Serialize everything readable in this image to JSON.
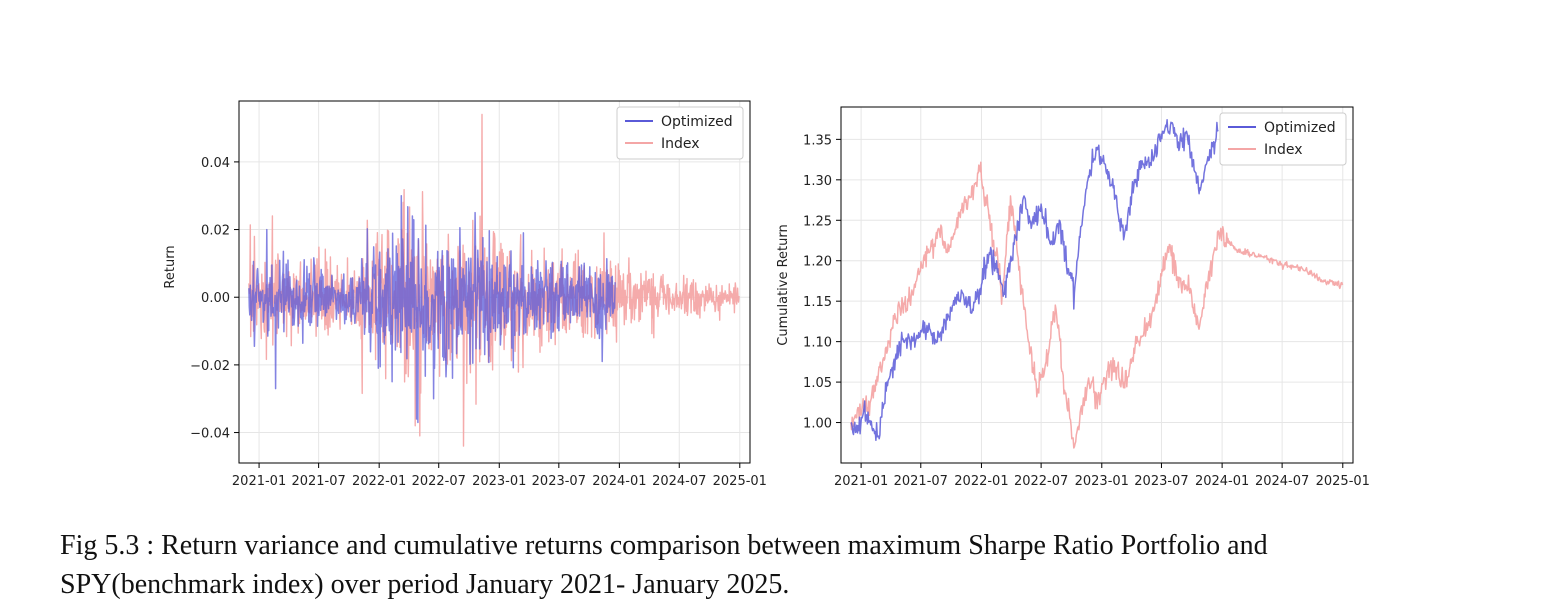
{
  "caption": {
    "line1": "Fig 5.3 : Return variance and cumulative returns comparison between maximum Sharpe Ratio Portfolio and",
    "line2": "SPY(benchmark index) over period January 2021- January 2025."
  },
  "colors": {
    "optimized": "#5a5ad8",
    "index": "#f4a6a6",
    "overlap": "#9b4fb0",
    "grid": "#e6e6e6",
    "axis": "#000000"
  },
  "chart_data": [
    {
      "type": "line",
      "title": "",
      "xlabel": "",
      "ylabel": "Return",
      "x_ticks": [
        "2021-01",
        "2021-07",
        "2022-01",
        "2022-07",
        "2023-01",
        "2023-07",
        "2024-01",
        "2024-07",
        "2025-01"
      ],
      "y_ticks": [
        "0.04",
        "0.02",
        "0.00",
        "−0.02",
        "−0.04"
      ],
      "ylim": [
        -0.049,
        0.058
      ],
      "xlim": [
        "2020-11-01",
        "2025-02-01"
      ],
      "grid": true,
      "legend": "top-right",
      "series": [
        {
          "name": "Optimized",
          "color": "#5a5ad8",
          "date_range": [
            "2020-12-01",
            "2023-12-20"
          ],
          "amplitude_profile": [
            {
              "date": "2020-12-01",
              "amp": 0.01
            },
            {
              "date": "2021-06-01",
              "amp": 0.01
            },
            {
              "date": "2021-09-01",
              "amp": 0.007
            },
            {
              "date": "2022-01-01",
              "amp": 0.018
            },
            {
              "date": "2022-06-01",
              "amp": 0.02
            },
            {
              "date": "2022-12-01",
              "amp": 0.014
            },
            {
              "date": "2023-06-01",
              "amp": 0.009
            },
            {
              "date": "2023-12-20",
              "amp": 0.011
            }
          ],
          "extremes": [
            {
              "date": "2021-02-20",
              "value": -0.027
            },
            {
              "date": "2021-01-25",
              "value": 0.02
            },
            {
              "date": "2022-03-10",
              "value": 0.03
            },
            {
              "date": "2022-04-25",
              "value": -0.036
            },
            {
              "date": "2022-06-15",
              "value": -0.03
            },
            {
              "date": "2022-10-20",
              "value": 0.025
            },
            {
              "date": "2023-03-15",
              "value": 0.019
            },
            {
              "date": "2023-11-10",
              "value": -0.019
            }
          ]
        },
        {
          "name": "Index",
          "color": "#f4a6a6",
          "date_range": [
            "2020-12-01",
            "2024-12-31"
          ],
          "amplitude_profile": [
            {
              "date": "2020-12-01",
              "amp": 0.012
            },
            {
              "date": "2021-06-01",
              "amp": 0.01
            },
            {
              "date": "2021-10-01",
              "amp": 0.01
            },
            {
              "date": "2022-03-01",
              "amp": 0.02
            },
            {
              "date": "2022-09-01",
              "amp": 0.022
            },
            {
              "date": "2023-03-01",
              "amp": 0.015
            },
            {
              "date": "2023-12-01",
              "amp": 0.011
            },
            {
              "date": "2024-05-01",
              "amp": 0.006
            },
            {
              "date": "2024-12-31",
              "amp": 0.004
            }
          ],
          "extremes": [
            {
              "date": "2022-11-10",
              "value": 0.054
            },
            {
              "date": "2022-09-15",
              "value": -0.044
            },
            {
              "date": "2022-05-05",
              "value": -0.041
            },
            {
              "date": "2022-04-20",
              "value": -0.038
            },
            {
              "date": "2021-02-10",
              "value": 0.024
            },
            {
              "date": "2022-03-15",
              "value": 0.028
            },
            {
              "date": "2023-11-15",
              "value": 0.019
            },
            {
              "date": "2024-04-15",
              "value": -0.012
            }
          ]
        }
      ]
    },
    {
      "type": "line",
      "title": "",
      "xlabel": "",
      "ylabel": "Cumulative Return",
      "x_ticks": [
        "2021-01",
        "2021-07",
        "2022-01",
        "2022-07",
        "2023-01",
        "2023-07",
        "2024-01",
        "2024-07",
        "2025-01"
      ],
      "y_ticks": [
        "1.35",
        "1.30",
        "1.25",
        "1.20",
        "1.15",
        "1.10",
        "1.05",
        "1.00"
      ],
      "ylim": [
        0.95,
        1.39
      ],
      "xlim": [
        "2020-11-01",
        "2025-02-01"
      ],
      "grid": true,
      "legend": "top-right",
      "series": [
        {
          "name": "Optimized",
          "color": "#5a5ad8",
          "points": [
            [
              "2020-12-01",
              1.0
            ],
            [
              "2020-12-25",
              0.99
            ],
            [
              "2021-01-10",
              1.02
            ],
            [
              "2021-02-05",
              0.99
            ],
            [
              "2021-02-25",
              0.98
            ],
            [
              "2021-03-20",
              1.05
            ],
            [
              "2021-04-15",
              1.08
            ],
            [
              "2021-05-10",
              1.1
            ],
            [
              "2021-06-15",
              1.1
            ],
            [
              "2021-07-20",
              1.12
            ],
            [
              "2021-08-20",
              1.1
            ],
            [
              "2021-10-01",
              1.14
            ],
            [
              "2021-11-05",
              1.16
            ],
            [
              "2021-12-05",
              1.14
            ],
            [
              "2022-01-01",
              1.17
            ],
            [
              "2022-01-25",
              1.21
            ],
            [
              "2022-02-20",
              1.19
            ],
            [
              "2022-03-10",
              1.16
            ],
            [
              "2022-04-10",
              1.22
            ],
            [
              "2022-05-10",
              1.28
            ],
            [
              "2022-06-01",
              1.24
            ],
            [
              "2022-07-01",
              1.27
            ],
            [
              "2022-07-30",
              1.22
            ],
            [
              "2022-08-25",
              1.25
            ],
            [
              "2022-09-20",
              1.19
            ],
            [
              "2022-10-10",
              1.16
            ],
            [
              "2022-10-25",
              1.23
            ],
            [
              "2022-11-20",
              1.3
            ],
            [
              "2022-12-15",
              1.34
            ],
            [
              "2023-01-10",
              1.32
            ],
            [
              "2023-02-05",
              1.29
            ],
            [
              "2023-03-10",
              1.23
            ],
            [
              "2023-04-10",
              1.3
            ],
            [
              "2023-05-15",
              1.32
            ],
            [
              "2023-06-10",
              1.33
            ],
            [
              "2023-07-10",
              1.36
            ],
            [
              "2023-08-01",
              1.37
            ],
            [
              "2023-08-25",
              1.34
            ],
            [
              "2023-09-15",
              1.36
            ],
            [
              "2023-10-10",
              1.31
            ],
            [
              "2023-10-25",
              1.29
            ],
            [
              "2023-11-15",
              1.32
            ],
            [
              "2023-12-20",
              1.36
            ]
          ]
        },
        {
          "name": "Index",
          "color": "#f4a6a6",
          "points": [
            [
              "2020-12-01",
              1.0
            ],
            [
              "2021-01-05",
              1.02
            ],
            [
              "2021-02-01",
              1.03
            ],
            [
              "2021-03-10",
              1.08
            ],
            [
              "2021-04-15",
              1.13
            ],
            [
              "2021-05-25",
              1.15
            ],
            [
              "2021-06-20",
              1.18
            ],
            [
              "2021-07-25",
              1.21
            ],
            [
              "2021-08-25",
              1.24
            ],
            [
              "2021-09-20",
              1.21
            ],
            [
              "2021-10-25",
              1.26
            ],
            [
              "2021-11-25",
              1.28
            ],
            [
              "2021-12-28",
              1.31
            ],
            [
              "2022-01-30",
              1.24
            ],
            [
              "2022-03-05",
              1.16
            ],
            [
              "2022-03-30",
              1.28
            ],
            [
              "2022-05-10",
              1.14
            ],
            [
              "2022-06-20",
              1.04
            ],
            [
              "2022-07-10",
              1.06
            ],
            [
              "2022-08-15",
              1.14
            ],
            [
              "2022-09-10",
              1.04
            ],
            [
              "2022-10-10",
              0.97
            ],
            [
              "2022-11-20",
              1.05
            ],
            [
              "2022-12-20",
              1.03
            ],
            [
              "2023-01-25",
              1.07
            ],
            [
              "2023-03-10",
              1.05
            ],
            [
              "2023-04-20",
              1.1
            ],
            [
              "2023-05-25",
              1.12
            ],
            [
              "2023-06-25",
              1.17
            ],
            [
              "2023-07-25",
              1.22
            ],
            [
              "2023-08-20",
              1.18
            ],
            [
              "2023-09-25",
              1.16
            ],
            [
              "2023-10-25",
              1.12
            ],
            [
              "2023-11-20",
              1.18
            ],
            [
              "2023-12-28",
              1.24
            ],
            [
              "2024-01-25",
              1.22
            ],
            [
              "2024-03-01",
              1.21
            ],
            [
              "2024-05-01",
              1.205
            ],
            [
              "2024-07-01",
              1.195
            ],
            [
              "2024-09-01",
              1.19
            ],
            [
              "2024-11-01",
              1.175
            ],
            [
              "2024-12-31",
              1.17
            ]
          ]
        }
      ]
    }
  ]
}
